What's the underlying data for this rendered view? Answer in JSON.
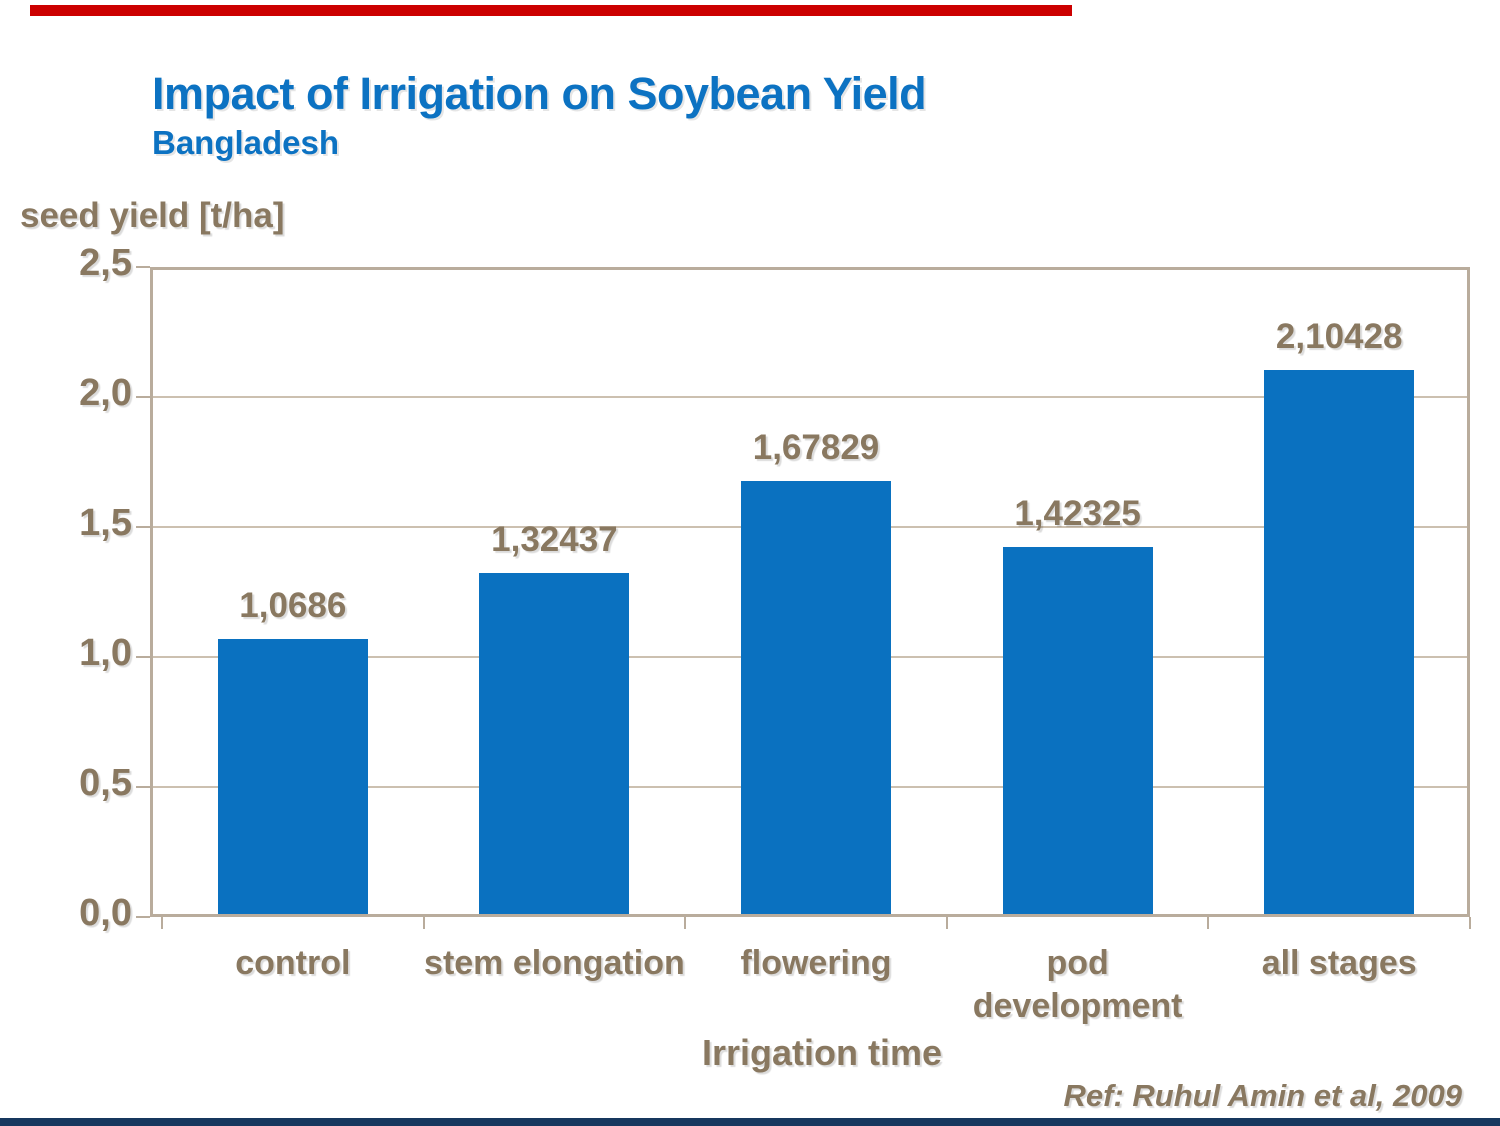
{
  "accent": {
    "top_bar_color": "#CC0000",
    "bottom_bar_color": "#17375E"
  },
  "header": {
    "title": "Impact of Irrigation on Soybean Yield",
    "subtitle": "Bangladesh",
    "title_color": "#0C72C2"
  },
  "chart_data": {
    "type": "bar",
    "title": "Impact of Irrigation on Soybean Yield",
    "subtitle": "Bangladesh",
    "categories": [
      "control",
      "stem elongation",
      "flowering",
      "pod development",
      "all stages"
    ],
    "values": [
      1.0686,
      1.32437,
      1.67829,
      1.42325,
      2.10428
    ],
    "value_labels": [
      "1,0686",
      "1,32437",
      "1,67829",
      "1,42325",
      "2,10428"
    ],
    "xlabel": "Irrigation time",
    "ylabel": "seed yield [t/ha]",
    "ylim": [
      0,
      2.5
    ],
    "ytick_step": 0.5,
    "ytick_labels": [
      "2,5",
      "2,0",
      "1,5",
      "1,0",
      "0,5",
      "0,0"
    ],
    "grid": true,
    "legend": "none",
    "bar_color": "#0A71C0",
    "text_color": "#897860",
    "gridline_color": "#CCC0B0",
    "frame_color": "#B9AC9C"
  },
  "footer": {
    "reference": "Ref: Ruhul Amin et al, 2009"
  }
}
